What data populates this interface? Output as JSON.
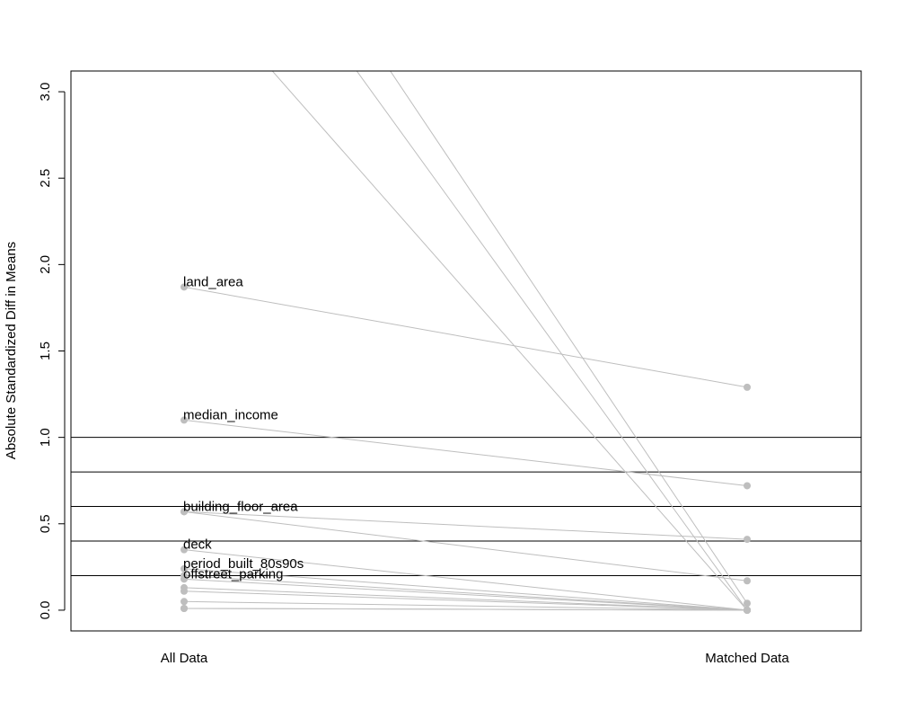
{
  "chart_data": {
    "type": "line",
    "title": "",
    "ylabel": "Absolute Standardized Diff in Means",
    "xlabel": "",
    "categories": [
      "All Data",
      "Matched Data"
    ],
    "ylim": [
      -0.12,
      3.12
    ],
    "yticks": [
      "0.0",
      "0.5",
      "1.0",
      "1.5",
      "2.0",
      "2.5",
      "3.0"
    ],
    "reference_lines": [
      0.2,
      0.4,
      0.6,
      0.8,
      1.0
    ],
    "line_color": "#bebebe",
    "point_color": "#bebebe",
    "reference_line_color": "#000000",
    "series": [
      {
        "label": "",
        "values": [
          3.7,
          0.0
        ]
      },
      {
        "label": "",
        "values": [
          4.5,
          0.0
        ]
      },
      {
        "label": "",
        "values": [
          4.9,
          0.04
        ]
      },
      {
        "label": "land_area",
        "values": [
          1.87,
          1.29
        ]
      },
      {
        "label": "median_income",
        "values": [
          1.1,
          0.72
        ]
      },
      {
        "label": "building_floor_area",
        "values": [
          0.57,
          0.17
        ]
      },
      {
        "label": "",
        "values": [
          0.57,
          0.41
        ]
      },
      {
        "label": "deck",
        "values": [
          0.35,
          0.0
        ]
      },
      {
        "label": "period_built_80s90s",
        "values": [
          0.24,
          0.0
        ]
      },
      {
        "label": "",
        "values": [
          0.2,
          0.0
        ]
      },
      {
        "label": "offstreet_parking",
        "values": [
          0.18,
          0.0
        ]
      },
      {
        "label": "",
        "values": [
          0.13,
          0.0
        ]
      },
      {
        "label": "",
        "values": [
          0.11,
          0.0
        ]
      },
      {
        "label": "",
        "values": [
          0.05,
          0.0
        ]
      },
      {
        "label": "",
        "values": [
          0.01,
          0.0
        ]
      },
      {
        "label": "",
        "values": [
          0.01,
          0.0
        ]
      }
    ]
  }
}
